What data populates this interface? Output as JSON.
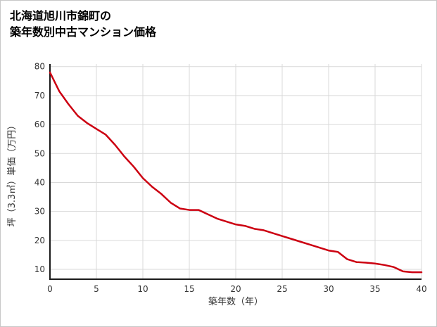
{
  "page": {
    "title_line1": "北海道旭川市錦町の",
    "title_line2": "築年数別中古マンション価格"
  },
  "chart_data": {
    "type": "line",
    "title": "北海道旭川市錦町の築年数別中古マンション価格",
    "xlabel": "築年数（年）",
    "ylabel": "坪（3.3㎡）単価（万円）",
    "x": [
      0,
      1,
      2,
      3,
      4,
      5,
      6,
      7,
      8,
      9,
      10,
      11,
      12,
      13,
      14,
      15,
      16,
      17,
      18,
      19,
      20,
      21,
      22,
      23,
      24,
      25,
      26,
      27,
      28,
      29,
      30,
      31,
      32,
      33,
      34,
      35,
      36,
      37,
      38,
      39,
      40
    ],
    "values": [
      78,
      71.5,
      67,
      63,
      60.5,
      58.5,
      56.5,
      53,
      49,
      45.5,
      41.5,
      38.5,
      36,
      33,
      31,
      30.5,
      30.5,
      29,
      27.5,
      26.5,
      25.5,
      25,
      24,
      23.5,
      22.5,
      21.5,
      20.5,
      19.5,
      18.5,
      17.5,
      16.5,
      16,
      13.5,
      12.5,
      12.3,
      12,
      11.5,
      10.8,
      9.3,
      9,
      9
    ],
    "xlim": [
      0,
      40
    ],
    "ylim": [
      6.6,
      80.9
    ],
    "x_ticks": [
      0,
      5,
      10,
      15,
      20,
      25,
      30,
      35,
      40
    ],
    "y_ticks": [
      10,
      20,
      30,
      40,
      50,
      60,
      70,
      80
    ],
    "grid": true,
    "legend_position": "none",
    "line_color": "#cc0011",
    "grid_color": "#d9d9d9",
    "axis_color": "#1a1a1a"
  }
}
